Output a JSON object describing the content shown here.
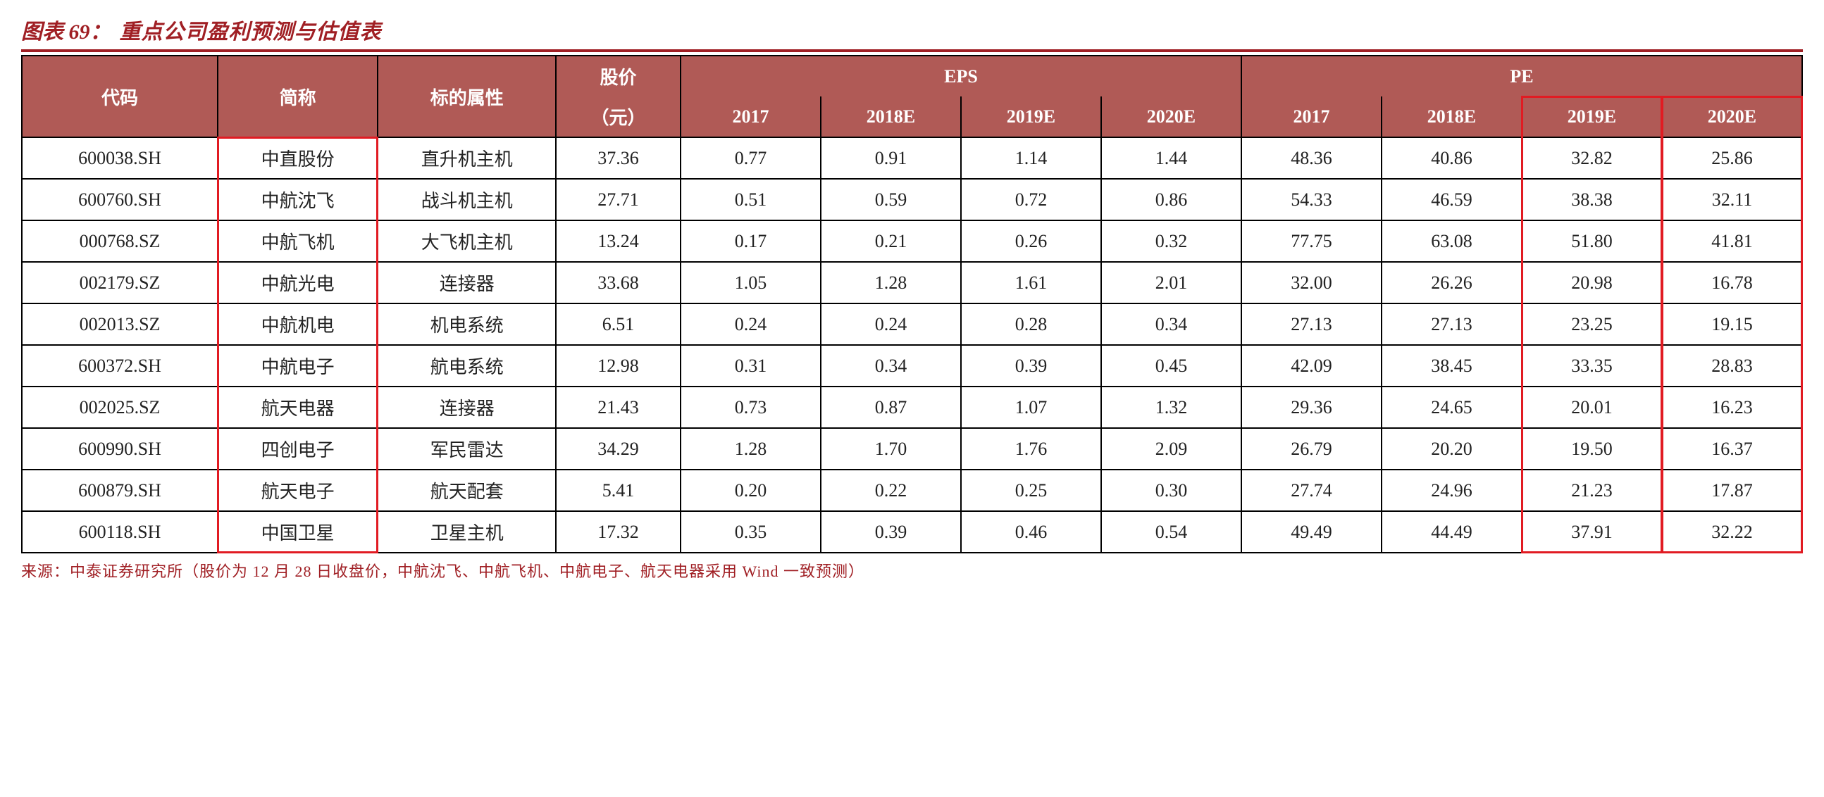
{
  "caption": {
    "prefix": "图表 69：",
    "title": "重点公司盈利预测与估值表"
  },
  "header": {
    "code": "代码",
    "name": "简称",
    "attr": "标的属性",
    "price_top": "股价",
    "price_sub": "（元）",
    "eps": "EPS",
    "pe": "PE",
    "years": [
      "2017",
      "2018E",
      "2019E",
      "2020E"
    ]
  },
  "rows": [
    {
      "code": "600038.SH",
      "name": "中直股份",
      "attr": "直升机主机",
      "price": "37.36",
      "eps": [
        "0.77",
        "0.91",
        "1.14",
        "1.44"
      ],
      "pe": [
        "48.36",
        "40.86",
        "32.82",
        "25.86"
      ]
    },
    {
      "code": "600760.SH",
      "name": "中航沈飞",
      "attr": "战斗机主机",
      "price": "27.71",
      "eps": [
        "0.51",
        "0.59",
        "0.72",
        "0.86"
      ],
      "pe": [
        "54.33",
        "46.59",
        "38.38",
        "32.11"
      ]
    },
    {
      "code": "000768.SZ",
      "name": "中航飞机",
      "attr": "大飞机主机",
      "price": "13.24",
      "eps": [
        "0.17",
        "0.21",
        "0.26",
        "0.32"
      ],
      "pe": [
        "77.75",
        "63.08",
        "51.80",
        "41.81"
      ]
    },
    {
      "code": "002179.SZ",
      "name": "中航光电",
      "attr": "连接器",
      "price": "33.68",
      "eps": [
        "1.05",
        "1.28",
        "1.61",
        "2.01"
      ],
      "pe": [
        "32.00",
        "26.26",
        "20.98",
        "16.78"
      ]
    },
    {
      "code": "002013.SZ",
      "name": "中航机电",
      "attr": "机电系统",
      "price": "6.51",
      "eps": [
        "0.24",
        "0.24",
        "0.28",
        "0.34"
      ],
      "pe": [
        "27.13",
        "27.13",
        "23.25",
        "19.15"
      ]
    },
    {
      "code": "600372.SH",
      "name": "中航电子",
      "attr": "航电系统",
      "price": "12.98",
      "eps": [
        "0.31",
        "0.34",
        "0.39",
        "0.45"
      ],
      "pe": [
        "42.09",
        "38.45",
        "33.35",
        "28.83"
      ]
    },
    {
      "code": "002025.SZ",
      "name": "航天电器",
      "attr": "连接器",
      "price": "21.43",
      "eps": [
        "0.73",
        "0.87",
        "1.07",
        "1.32"
      ],
      "pe": [
        "29.36",
        "24.65",
        "20.01",
        "16.23"
      ]
    },
    {
      "code": "600990.SH",
      "name": "四创电子",
      "attr": "军民雷达",
      "price": "34.29",
      "eps": [
        "1.28",
        "1.70",
        "1.76",
        "2.09"
      ],
      "pe": [
        "26.79",
        "20.20",
        "19.50",
        "16.37"
      ]
    },
    {
      "code": "600879.SH",
      "name": "航天电子",
      "attr": "航天配套",
      "price": "5.41",
      "eps": [
        "0.20",
        "0.22",
        "0.25",
        "0.30"
      ],
      "pe": [
        "27.74",
        "24.96",
        "21.23",
        "17.87"
      ]
    },
    {
      "code": "600118.SH",
      "name": "中国卫星",
      "attr": "卫星主机",
      "price": "17.32",
      "eps": [
        "0.35",
        "0.39",
        "0.46",
        "0.54"
      ],
      "pe": [
        "49.49",
        "44.49",
        "37.91",
        "32.22"
      ]
    }
  ],
  "footnote": "来源：中泰证券研究所（股价为 12 月 28 日收盘价，中航沈飞、中航飞机、中航电子、航天电器采用 Wind 一致预测）",
  "styling": {
    "header_bg": "#b05a56",
    "header_fg": "#ffffff",
    "border_color": "#000000",
    "accent_color": "#a01f24",
    "highlight_border": "#e11b22",
    "body_text": "#222222",
    "caption_fontsize_pt": 22,
    "cell_fontsize_pt": 20,
    "footnote_fontsize_pt": 16,
    "highlight_columns": [
      "name",
      "pe_2019E",
      "pe_2020E"
    ],
    "column_widths_pct": {
      "code": 11,
      "name": 9,
      "attr": 10,
      "price": 7,
      "num": 7.875
    }
  }
}
